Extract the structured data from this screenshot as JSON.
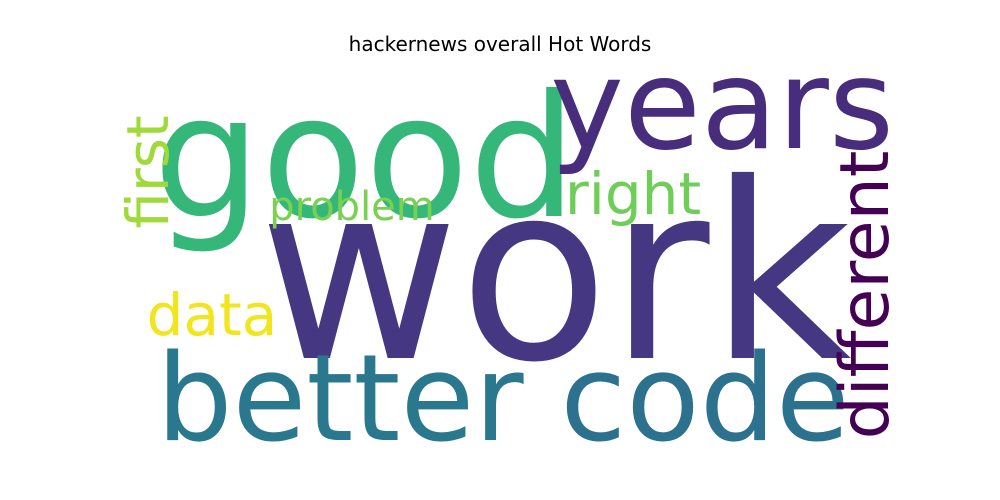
{
  "chart_data": {
    "type": "wordcloud",
    "title": "hackernews overall Hot Words",
    "words": [
      {
        "text": "work",
        "color": "#453781"
      },
      {
        "text": "good",
        "color": "#35b779"
      },
      {
        "text": "years",
        "color": "#472d7b"
      },
      {
        "text": "better",
        "color": "#2a788e"
      },
      {
        "text": "code",
        "color": "#2c728e"
      },
      {
        "text": "different",
        "color": "#440154"
      },
      {
        "text": "right",
        "color": "#6ece58"
      },
      {
        "text": "problem",
        "color": "#7ad151"
      },
      {
        "text": "first",
        "color": "#a0da39"
      },
      {
        "text": "data",
        "color": "#f1e51d"
      }
    ]
  }
}
